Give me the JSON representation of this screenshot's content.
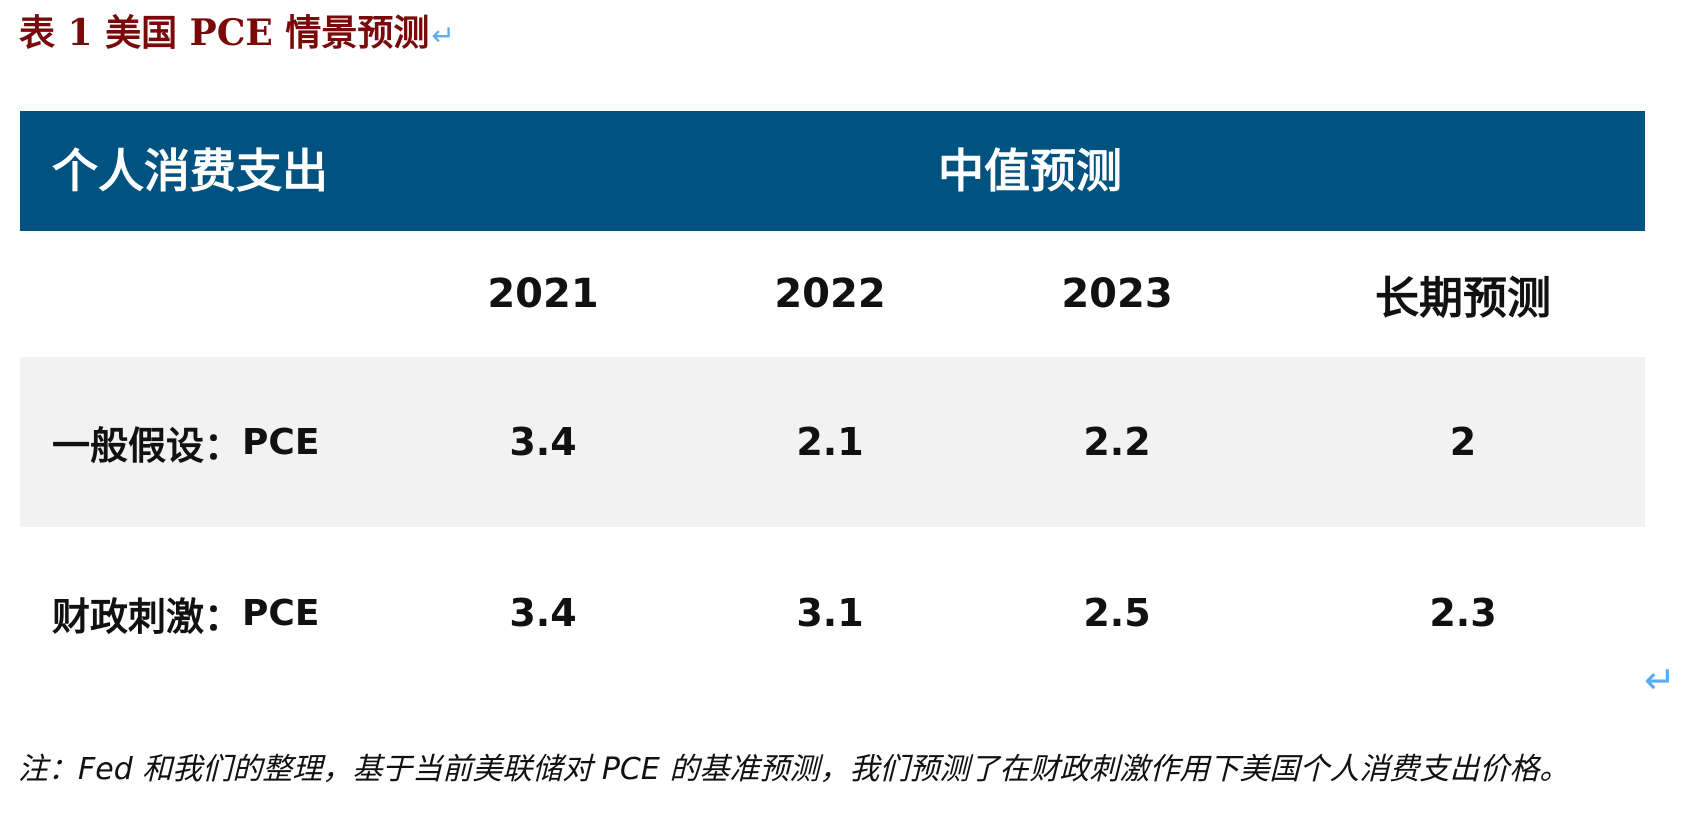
{
  "caption": {
    "text": "表 1 美国 PCE 情景预测",
    "mark": "↵"
  },
  "table": {
    "header": {
      "left": "个人消费支出",
      "center": "中值预测"
    },
    "columns": [
      "2021",
      "2022",
      "2023",
      "长期预测"
    ],
    "rows": [
      {
        "label": "一般假设：",
        "suffix": "PCE",
        "values": [
          "3.4",
          "2.1",
          "2.2",
          "2"
        ]
      },
      {
        "label": "财政刺激：",
        "suffix": "PCE",
        "values": [
          "3.4",
          "3.1",
          "2.5",
          "2.3"
        ]
      }
    ]
  },
  "paragraph_mark": "↵",
  "note": "注：Fed 和我们的整理，基于当前美联储对 PCE 的基准预测，我们预测了在财政刺激作用下美国个人消费支出价格。",
  "colors": {
    "header_band": "#005380",
    "caption_text": "#7a0a0a",
    "row_shade": "#f2f2f2",
    "edit_mark": "#5aaef0"
  }
}
